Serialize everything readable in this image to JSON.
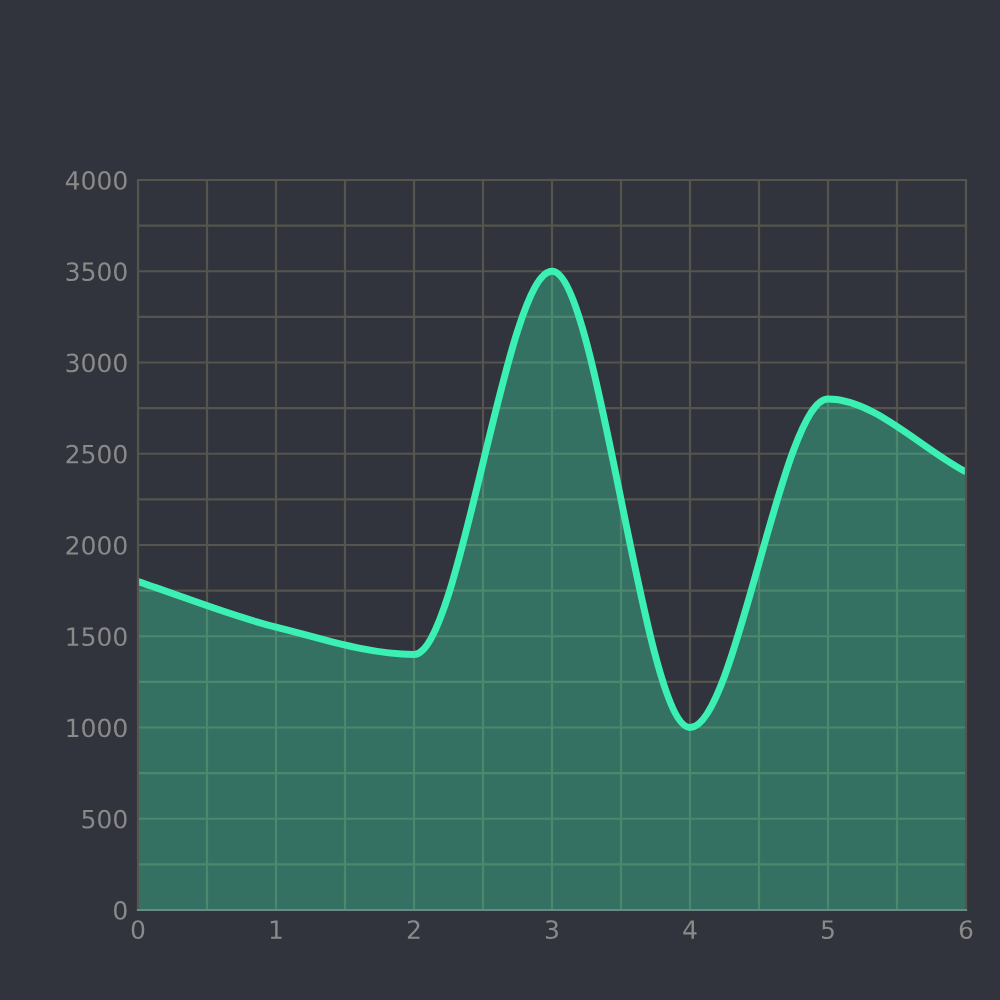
{
  "chart_data": {
    "type": "area",
    "x": [
      0,
      1,
      2,
      3,
      4,
      5,
      6
    ],
    "series": [
      {
        "color": "#3cf0b4",
        "values": [
          1800,
          1550,
          1400,
          3500,
          1000,
          2800,
          2400
        ]
      }
    ],
    "xlim": [
      0,
      6
    ],
    "xticks": [
      0,
      {
        "value": 0.5,
        "label": null
      },
      1,
      {
        "value": 1.5,
        "label": null
      },
      2,
      {
        "value": 2.5,
        "label": null
      },
      3,
      {
        "value": 3.5,
        "label": null
      },
      4,
      {
        "value": 4.5,
        "label": null
      },
      5,
      {
        "value": 5.5,
        "label": null
      },
      6
    ],
    "ylim": [
      0,
      4000
    ],
    "yticks": [
      0,
      {
        "value": 250,
        "label": null
      },
      500,
      {
        "value": 750,
        "label": null
      },
      1000,
      {
        "value": 1250,
        "label": null
      },
      1500,
      {
        "value": 1750,
        "label": null
      },
      2000,
      {
        "value": 2250,
        "label": null
      },
      2500,
      {
        "value": 2750,
        "label": null
      },
      3000,
      {
        "value": 3250,
        "label": null
      },
      3500,
      {
        "value": 3750,
        "label": null
      },
      4000
    ],
    "grid": true,
    "line_style": "solid"
  }
}
